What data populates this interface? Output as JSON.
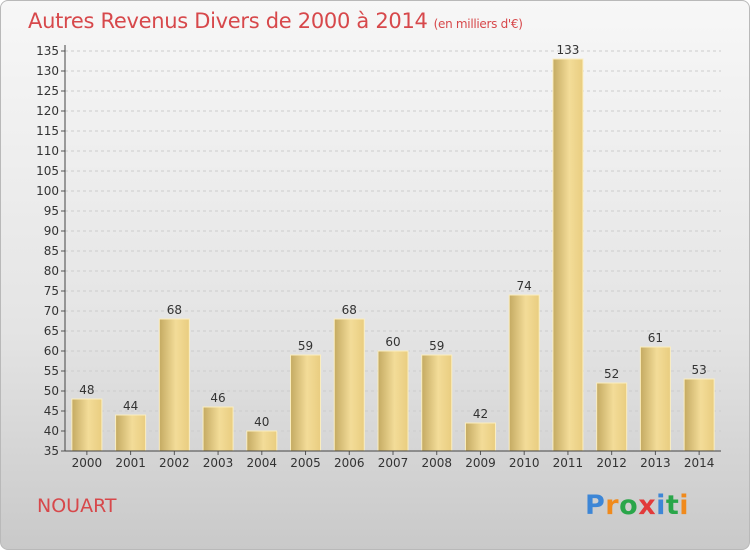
{
  "header": {
    "title": "Autres Revenus Divers de 2000 à 2014",
    "subtitle": "(en milliers d'€)"
  },
  "footer": {
    "commune": "NOUART",
    "logo_letters": [
      "P",
      "r",
      "o",
      "x",
      "i",
      "t",
      "i"
    ],
    "logo_colors": [
      "#3d86d6",
      "#f08a1c",
      "#2aa64a",
      "#e23a3a",
      "#3d86d6",
      "#2aa64a",
      "#f08a1c"
    ]
  },
  "colors": {
    "title": "#d7484b",
    "bar_light": "#f5dd98",
    "bar_dark": "#c4aa62",
    "grid": "#cccccc"
  },
  "chart_data": {
    "type": "bar",
    "title": "Autres Revenus Divers de 2000 à 2014",
    "subtitle": "(en milliers d'€)",
    "categories": [
      "2000",
      "2001",
      "2002",
      "2003",
      "2004",
      "2005",
      "2006",
      "2007",
      "2008",
      "2009",
      "2010",
      "2011",
      "2012",
      "2013",
      "2014"
    ],
    "values": [
      48,
      44,
      68,
      46,
      40,
      59,
      68,
      60,
      59,
      42,
      74,
      133,
      52,
      61,
      53
    ],
    "ylim": [
      35,
      135
    ],
    "ytick_step": 5,
    "grid": "horizontal dashed",
    "xlabel": "",
    "ylabel": ""
  }
}
